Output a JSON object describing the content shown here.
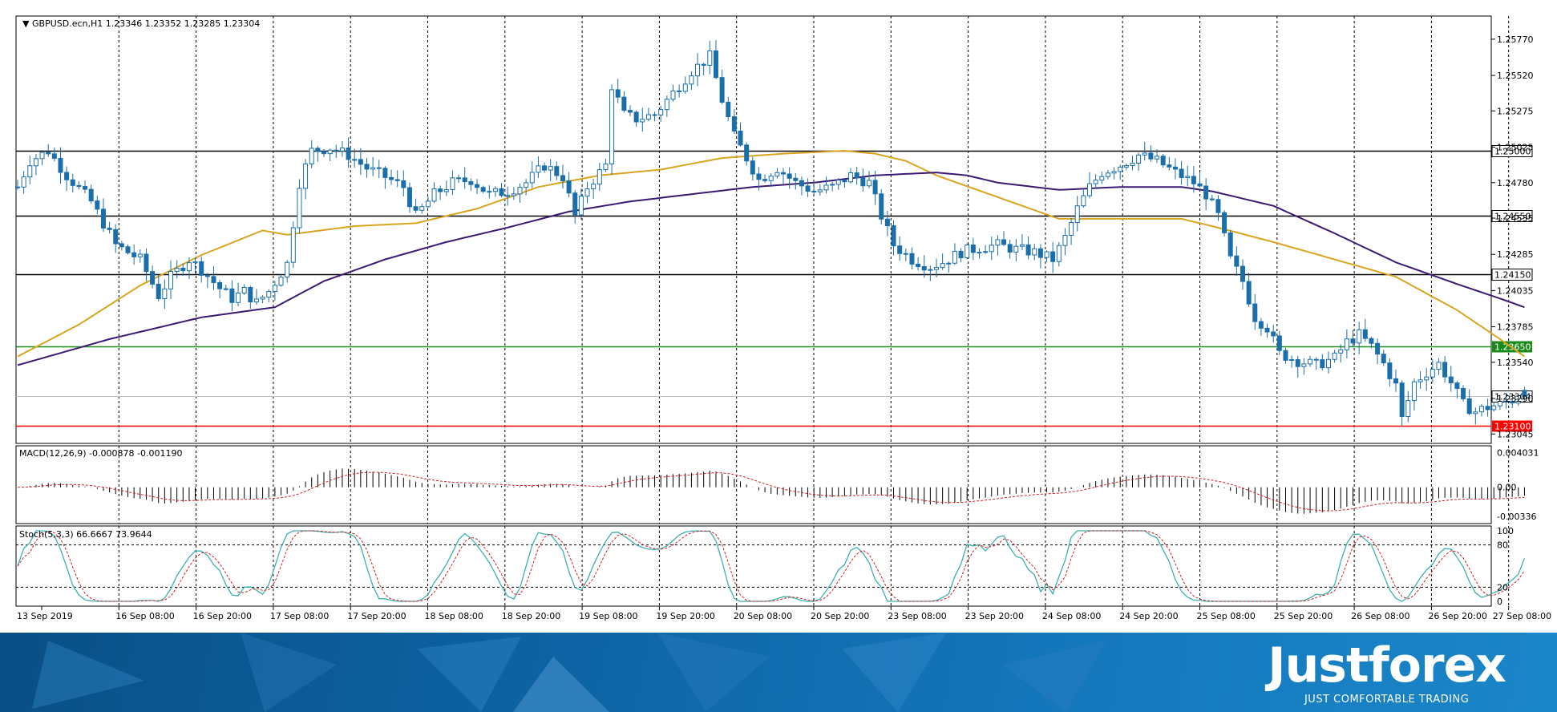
{
  "window": {
    "title": "GBPUSD.ecn,H1  1.23346 1.23352 1.23285 1.23304"
  },
  "indicators": {
    "macd_label": "MACD(12,26,9) -0.000878 -0.001190",
    "stoch_label": "Stoch(5,3,3) 66.6667 73.9644"
  },
  "brand": {
    "name": "Justforex",
    "tagline": "JUST COMFORTABLE TRADING"
  },
  "colors": {
    "bull_candle": "#ffffff",
    "bear_candle": "#1a6faa",
    "ma_fast": "#d9a520",
    "ma_slow": "#3c1a73",
    "support_line": "#000000",
    "green_level": "#1a8a1a",
    "red_level": "#ff0000",
    "stoch_main": "#3fb0b0",
    "stoch_signal": "#d02020",
    "macd_signal": "#d02020"
  },
  "chart_data": [
    {
      "type": "candlestick",
      "symbol": "GBPUSD.ecn",
      "timeframe": "H1",
      "ohlc_last": {
        "open": 1.23346,
        "high": 1.23352,
        "low": 1.23285,
        "close": 1.23304
      },
      "ylim": [
        1.2298,
        1.2593
      ],
      "y_ticks": [
        "1.25770",
        "1.25520",
        "1.25275",
        "1.25025",
        "1.24780",
        "1.24535",
        "1.24285",
        "1.24035",
        "1.23785",
        "1.23540",
        "1.23290",
        "1.23045"
      ],
      "x_ticks": [
        "13 Sep 2019",
        "16 Sep 08:00",
        "16 Sep 20:00",
        "17 Sep 08:00",
        "17 Sep 20:00",
        "18 Sep 08:00",
        "18 Sep 20:00",
        "19 Sep 08:00",
        "19 Sep 20:00",
        "20 Sep 08:00",
        "20 Sep 20:00",
        "23 Sep 08:00",
        "23 Sep 20:00",
        "24 Sep 08:00",
        "24 Sep 20:00",
        "25 Sep 08:00",
        "25 Sep 20:00",
        "26 Sep 08:00",
        "26 Sep 20:00",
        "27 Sep 08:00"
      ],
      "horizontal_levels": [
        {
          "value": 1.25,
          "label": "1.25000",
          "color": "#000000"
        },
        {
          "value": 1.2455,
          "label": "1.24550",
          "color": "#000000"
        },
        {
          "value": 1.2415,
          "label": "1.24150",
          "color": "#000000"
        },
        {
          "value": 1.2365,
          "label": "1.23650",
          "color": "#1a8a1a"
        },
        {
          "value": 1.231,
          "label": "1.23100",
          "color": "#ff0000"
        },
        {
          "value": 1.23304,
          "label": "1.23304",
          "color": "#c0c0c0"
        }
      ],
      "path_points": [
        [
          0,
          1.2475
        ],
        [
          2,
          1.2493
        ],
        [
          5,
          1.25
        ],
        [
          8,
          1.2483
        ],
        [
          12,
          1.2465
        ],
        [
          16,
          1.2435
        ],
        [
          20,
          1.2425
        ],
        [
          23,
          1.24
        ],
        [
          25,
          1.2413
        ],
        [
          28,
          1.2425
        ],
        [
          30,
          1.2418
        ],
        [
          33,
          1.2405
        ],
        [
          35,
          1.2398
        ],
        [
          37,
          1.2403
        ],
        [
          39,
          1.2395
        ],
        [
          41,
          1.2403
        ],
        [
          44,
          1.2422
        ],
        [
          46,
          1.2478
        ],
        [
          48,
          1.25
        ],
        [
          51,
          1.2502
        ],
        [
          54,
          1.2497
        ],
        [
          57,
          1.2488
        ],
        [
          60,
          1.2482
        ],
        [
          63,
          1.2475
        ],
        [
          65,
          1.2455
        ],
        [
          68,
          1.247
        ],
        [
          71,
          1.2478
        ],
        [
          74,
          1.248
        ],
        [
          77,
          1.247
        ],
        [
          80,
          1.2472
        ],
        [
          83,
          1.2478
        ],
        [
          86,
          1.249
        ],
        [
          89,
          1.2482
        ],
        [
          91,
          1.2455
        ],
        [
          93,
          1.2475
        ],
        [
          95,
          1.2485
        ],
        [
          96,
          1.249
        ],
        [
          97,
          1.2545
        ],
        [
          99,
          1.2525
        ],
        [
          101,
          1.2522
        ],
        [
          104,
          1.2525
        ],
        [
          107,
          1.254
        ],
        [
          110,
          1.2555
        ],
        [
          113,
          1.2565
        ],
        [
          115,
          1.2535
        ],
        [
          117,
          1.251
        ],
        [
          119,
          1.2495
        ],
        [
          121,
          1.248
        ],
        [
          124,
          1.2488
        ],
        [
          127,
          1.2478
        ],
        [
          130,
          1.2472
        ],
        [
          133,
          1.2475
        ],
        [
          136,
          1.2483
        ],
        [
          139,
          1.2478
        ],
        [
          141,
          1.2455
        ],
        [
          143,
          1.2435
        ],
        [
          146,
          1.2425
        ],
        [
          149,
          1.242
        ],
        [
          151,
          1.2423
        ],
        [
          154,
          1.243
        ],
        [
          157,
          1.2433
        ],
        [
          160,
          1.2435
        ],
        [
          163,
          1.2432
        ],
        [
          166,
          1.243
        ],
        [
          169,
          1.2425
        ],
        [
          171,
          1.244
        ],
        [
          173,
          1.246
        ],
        [
          175,
          1.2475
        ],
        [
          177,
          1.2485
        ],
        [
          180,
          1.249
        ],
        [
          183,
          1.2497
        ],
        [
          186,
          1.2493
        ],
        [
          189,
          1.2485
        ],
        [
          192,
          1.2478
        ],
        [
          194,
          1.247
        ],
        [
          196,
          1.2455
        ],
        [
          198,
          1.2425
        ],
        [
          200,
          1.241
        ],
        [
          202,
          1.2385
        ],
        [
          204,
          1.2378
        ],
        [
          206,
          1.236
        ],
        [
          209,
          1.2355
        ],
        [
          212,
          1.2352
        ],
        [
          215,
          1.2357
        ],
        [
          217,
          1.2368
        ],
        [
          219,
          1.2373
        ],
        [
          221,
          1.2365
        ],
        [
          223,
          1.2353
        ],
        [
          225,
          1.2338
        ],
        [
          226,
          1.2315
        ],
        [
          228,
          1.234
        ],
        [
          230,
          1.2347
        ],
        [
          232,
          1.2353
        ],
        [
          234,
          1.234
        ],
        [
          236,
          1.2325
        ],
        [
          238,
          1.232
        ],
        [
          240,
          1.2323
        ],
        [
          242,
          1.2325
        ],
        [
          244,
          1.2328
        ],
        [
          246,
          1.233
        ]
      ],
      "ma_fast_points": [
        [
          0,
          1.2358
        ],
        [
          10,
          1.238
        ],
        [
          20,
          1.2407
        ],
        [
          30,
          1.2428
        ],
        [
          40,
          1.2445
        ],
        [
          44,
          1.2442
        ],
        [
          55,
          1.2448
        ],
        [
          65,
          1.245
        ],
        [
          75,
          1.246
        ],
        [
          85,
          1.2475
        ],
        [
          95,
          1.2483
        ],
        [
          105,
          1.2487
        ],
        [
          115,
          1.2495
        ],
        [
          125,
          1.2498
        ],
        [
          135,
          1.25
        ],
        [
          140,
          1.2498
        ],
        [
          145,
          1.2493
        ],
        [
          150,
          1.2483
        ],
        [
          160,
          1.2468
        ],
        [
          170,
          1.2453
        ],
        [
          180,
          1.2453
        ],
        [
          190,
          1.2453
        ],
        [
          195,
          1.2448
        ],
        [
          205,
          1.2437
        ],
        [
          215,
          1.2425
        ],
        [
          225,
          1.2413
        ],
        [
          235,
          1.239
        ],
        [
          242,
          1.237
        ],
        [
          246,
          1.2358
        ]
      ],
      "ma_slow_points": [
        [
          0,
          1.2352
        ],
        [
          15,
          1.237
        ],
        [
          30,
          1.2385
        ],
        [
          42,
          1.2392
        ],
        [
          50,
          1.241
        ],
        [
          60,
          1.2425
        ],
        [
          70,
          1.2437
        ],
        [
          80,
          1.2447
        ],
        [
          90,
          1.2458
        ],
        [
          100,
          1.2465
        ],
        [
          110,
          1.247
        ],
        [
          120,
          1.2475
        ],
        [
          130,
          1.2478
        ],
        [
          140,
          1.2483
        ],
        [
          150,
          1.2485
        ],
        [
          155,
          1.2483
        ],
        [
          160,
          1.2478
        ],
        [
          170,
          1.2473
        ],
        [
          180,
          1.2475
        ],
        [
          190,
          1.2475
        ],
        [
          195,
          1.2472
        ],
        [
          205,
          1.2462
        ],
        [
          215,
          1.2443
        ],
        [
          225,
          1.2423
        ],
        [
          235,
          1.2408
        ],
        [
          242,
          1.2398
        ],
        [
          246,
          1.2392
        ]
      ]
    },
    {
      "type": "bar",
      "name": "MACD(12,26,9)",
      "values_last": {
        "main": -0.000878,
        "signal": -0.00119
      },
      "ylim": [
        -0.0042,
        0.0048
      ],
      "y_ticks": [
        "0.004031",
        "0.00",
        "-0.00336"
      ]
    },
    {
      "type": "line",
      "name": "Stoch(5,3,3)",
      "values_last": {
        "main": 66.6667,
        "signal": 73.9644
      },
      "ylim": [
        0,
        100
      ],
      "y_ticks": [
        "100",
        "80",
        "20",
        "0"
      ],
      "levels": [
        80,
        20
      ]
    }
  ]
}
